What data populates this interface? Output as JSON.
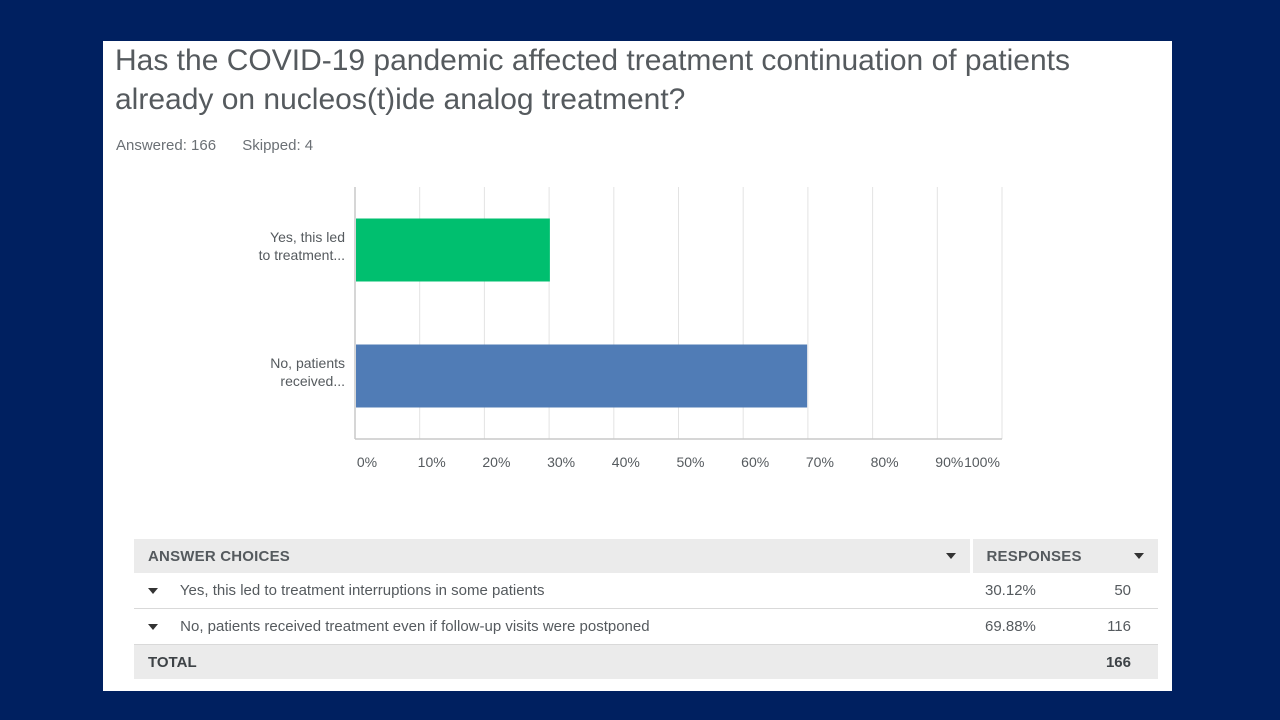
{
  "question": {
    "title": "Has the COVID-19 pandemic affected treatment continuation of patients already on nucleos(t)ide analog treatment?",
    "answered_label": "Answered: 166",
    "skipped_label": "Skipped: 4"
  },
  "chart_data": {
    "type": "bar",
    "orientation": "horizontal",
    "categories": [
      "Yes, this led to treatment...",
      "No, patients received..."
    ],
    "category_lines": [
      [
        "Yes, this led",
        "to treatment..."
      ],
      [
        "No, patients",
        "received..."
      ]
    ],
    "values": [
      30.12,
      69.88
    ],
    "colors": [
      "#00bf6f",
      "#507cb6"
    ],
    "xlim": [
      0,
      100
    ],
    "xticks": [
      "0%",
      "10%",
      "20%",
      "30%",
      "40%",
      "50%",
      "60%",
      "70%",
      "80%",
      "90%",
      "100%"
    ],
    "grid": true,
    "title": "",
    "xlabel": "",
    "ylabel": ""
  },
  "table": {
    "headers": {
      "choices": "ANSWER CHOICES",
      "responses": "RESPONSES"
    },
    "rows": [
      {
        "choice": "Yes, this led to treatment interruptions in some patients",
        "percent": "30.12%",
        "count": "50"
      },
      {
        "choice": "No, patients received treatment even if follow-up visits were postponed",
        "percent": "69.88%",
        "count": "116"
      }
    ],
    "total_label": "TOTAL",
    "total_count": "166"
  }
}
